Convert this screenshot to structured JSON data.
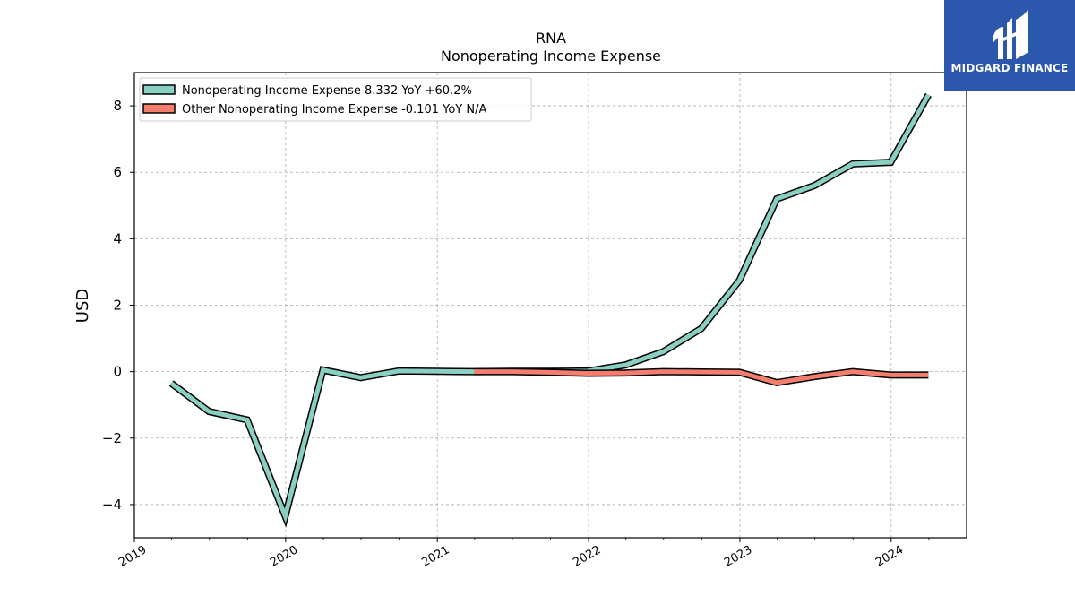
{
  "brand": {
    "name": "MIDGARD FINANCE",
    "bg_color": "#2b58ad"
  },
  "chart_data": {
    "type": "line",
    "title": "RNA",
    "subtitle": "Nonoperating Income Expense",
    "ylabel": "USD",
    "xlabel": "",
    "xlim": [
      "2019-01-01",
      "2024-07-01"
    ],
    "ylim": [
      -5,
      9
    ],
    "yticks": [
      -4,
      -2,
      0,
      2,
      4,
      6,
      8
    ],
    "xtick_labels": [
      "2019",
      "2020",
      "2021",
      "2022",
      "2023",
      "2024"
    ],
    "grid": true,
    "legend_position": "top-left",
    "series": [
      {
        "name": "Nonoperating Income Expense",
        "legend": "Nonoperating Income Expense  8.332 YoY +60.2%",
        "color": "#8ad0c2",
        "x": [
          "2019-03-31",
          "2019-06-30",
          "2019-09-30",
          "2019-12-31",
          "2020-03-31",
          "2020-06-30",
          "2020-09-30",
          "2020-12-31",
          "2021-03-31",
          "2021-06-30",
          "2021-09-30",
          "2021-12-31",
          "2022-03-31",
          "2022-06-30",
          "2022-09-30",
          "2022-12-31",
          "2023-03-31",
          "2023-06-30",
          "2023-09-30",
          "2023-12-31",
          "2024-03-31"
        ],
        "values": [
          -0.35,
          -1.2,
          -1.45,
          -4.35,
          0.05,
          -0.18,
          0.02,
          0.01,
          0.0,
          0.01,
          0.01,
          0.02,
          0.2,
          0.6,
          1.3,
          2.75,
          5.2,
          5.6,
          6.25,
          6.3,
          8.332
        ]
      },
      {
        "name": "Other Nonoperating Income Expense",
        "legend": "Other Nonoperating Income Expense  -0.101 YoY N/A",
        "color": "#f47e6e",
        "x": [
          "2021-03-31",
          "2021-06-30",
          "2021-09-30",
          "2021-12-31",
          "2022-03-31",
          "2022-06-30",
          "2022-09-30",
          "2022-12-31",
          "2023-03-31",
          "2023-06-30",
          "2023-09-30",
          "2023-12-31",
          "2024-03-31"
        ],
        "values": [
          0.0,
          0.0,
          -0.02,
          -0.05,
          -0.04,
          0.0,
          -0.01,
          -0.02,
          -0.33,
          -0.15,
          0.0,
          -0.1,
          -0.101
        ]
      }
    ]
  }
}
